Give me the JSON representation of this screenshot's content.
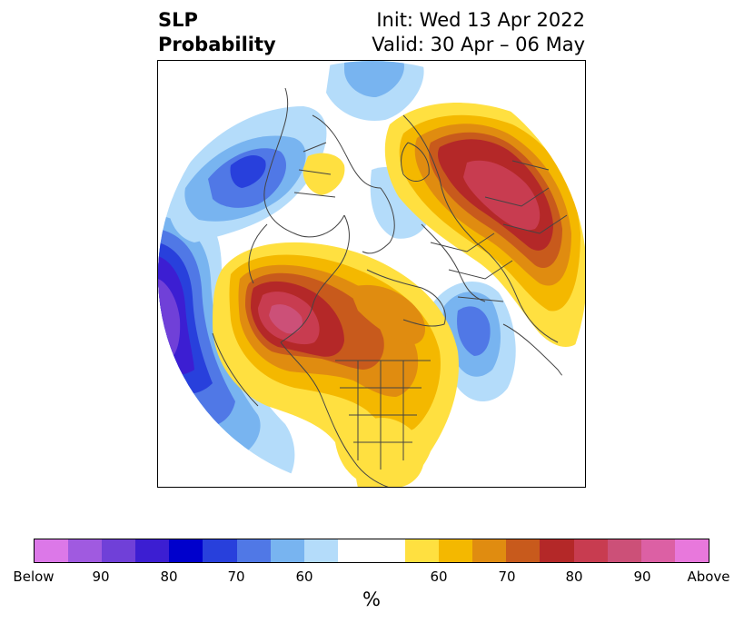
{
  "title": {
    "left_line1": "SLP",
    "left_line2": "Probability",
    "right_line1": "Init: Wed 13 Apr 2022",
    "right_line2": "Valid: 30 Apr – 06 May"
  },
  "colorbar": {
    "unit": "%",
    "colors": [
      "#dc78e8",
      "#a05ae0",
      "#7040d8",
      "#3c1ed2",
      "#0000cc",
      "#2840dc",
      "#5078e6",
      "#78b4f0",
      "#b4dcfa",
      "#ffffff",
      "#ffffff",
      "#ffe040",
      "#f4b800",
      "#e08c10",
      "#c85a1c",
      "#b42828",
      "#c83c50",
      "#cc5078",
      "#dc60a4",
      "#e878dc"
    ],
    "tick_labels": [
      "Below",
      "90",
      "80",
      "70",
      "60",
      "60",
      "70",
      "80",
      "90",
      "Above"
    ]
  },
  "map_legend_palette": {
    "above_colors": [
      "#ffe040",
      "#f4b800",
      "#e08c10",
      "#c85a1c",
      "#b42828",
      "#c83c50",
      "#cc5078"
    ],
    "below_colors": [
      "#b4dcfa",
      "#78b4f0",
      "#5078e6",
      "#2840dc",
      "#3c1ed2",
      "#7040d8"
    ]
  }
}
